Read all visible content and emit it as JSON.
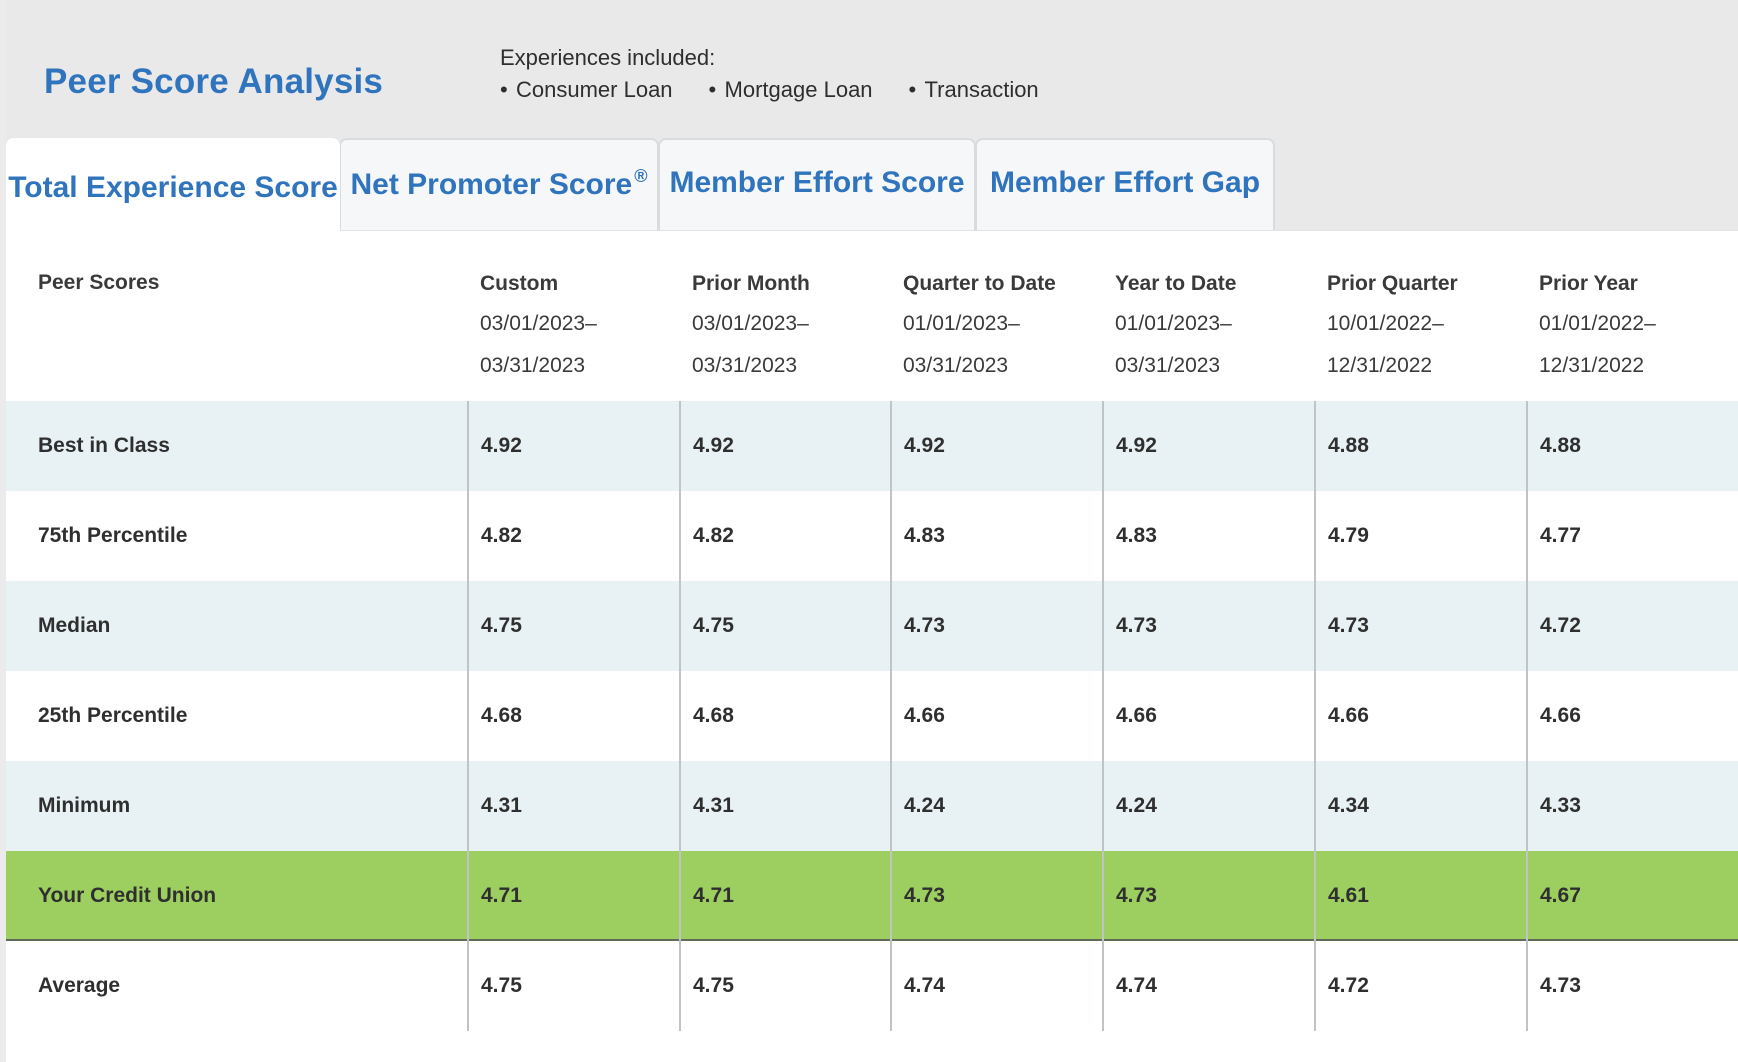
{
  "header": {
    "title": "Peer Score Analysis",
    "experiences_label": "Experiences included:",
    "experiences": [
      "Consumer Loan",
      "Mortgage Loan",
      "Transaction"
    ]
  },
  "tabs": [
    {
      "label": "Total Experience Score",
      "active": true
    },
    {
      "label": "Net Promoter Score",
      "sup": "®",
      "active": false
    },
    {
      "label": "Member Effort Score",
      "active": false
    },
    {
      "label": "Member Effort Gap",
      "active": false
    }
  ],
  "table": {
    "row_header_label": "Peer Scores",
    "columns": [
      {
        "title": "Custom",
        "start": "03/01/2023–",
        "end": "03/31/2023"
      },
      {
        "title": "Prior Month",
        "start": "03/01/2023–",
        "end": "03/31/2023"
      },
      {
        "title": "Quarter to Date",
        "start": "01/01/2023–",
        "end": "03/31/2023"
      },
      {
        "title": "Year to Date",
        "start": "01/01/2023–",
        "end": "03/31/2023"
      },
      {
        "title": "Prior Quarter",
        "start": "10/01/2022–",
        "end": "12/31/2022"
      },
      {
        "title": "Prior Year",
        "start": "01/01/2022–",
        "end": "12/31/2022"
      }
    ],
    "rows": [
      {
        "label": "Best in Class",
        "values": [
          "4.92",
          "4.92",
          "4.92",
          "4.92",
          "4.88",
          "4.88"
        ]
      },
      {
        "label": "75th Percentile",
        "values": [
          "4.82",
          "4.82",
          "4.83",
          "4.83",
          "4.79",
          "4.77"
        ]
      },
      {
        "label": "Median",
        "values": [
          "4.75",
          "4.75",
          "4.73",
          "4.73",
          "4.73",
          "4.72"
        ]
      },
      {
        "label": "25th Percentile",
        "values": [
          "4.68",
          "4.68",
          "4.66",
          "4.66",
          "4.66",
          "4.66"
        ]
      },
      {
        "label": "Minimum",
        "values": [
          "4.31",
          "4.31",
          "4.24",
          "4.24",
          "4.34",
          "4.33"
        ]
      },
      {
        "label": "Your Credit Union",
        "values": [
          "4.71",
          "4.71",
          "4.73",
          "4.73",
          "4.61",
          "4.67"
        ]
      },
      {
        "label": "Average",
        "values": [
          "4.75",
          "4.75",
          "4.74",
          "4.74",
          "4.72",
          "4.73"
        ]
      }
    ]
  },
  "colors": {
    "brand_blue": "#2f74bd",
    "row_shade": "#e8f2f4",
    "highlight_green": "#9dcf60",
    "header_bg": "#e9e9ea"
  }
}
